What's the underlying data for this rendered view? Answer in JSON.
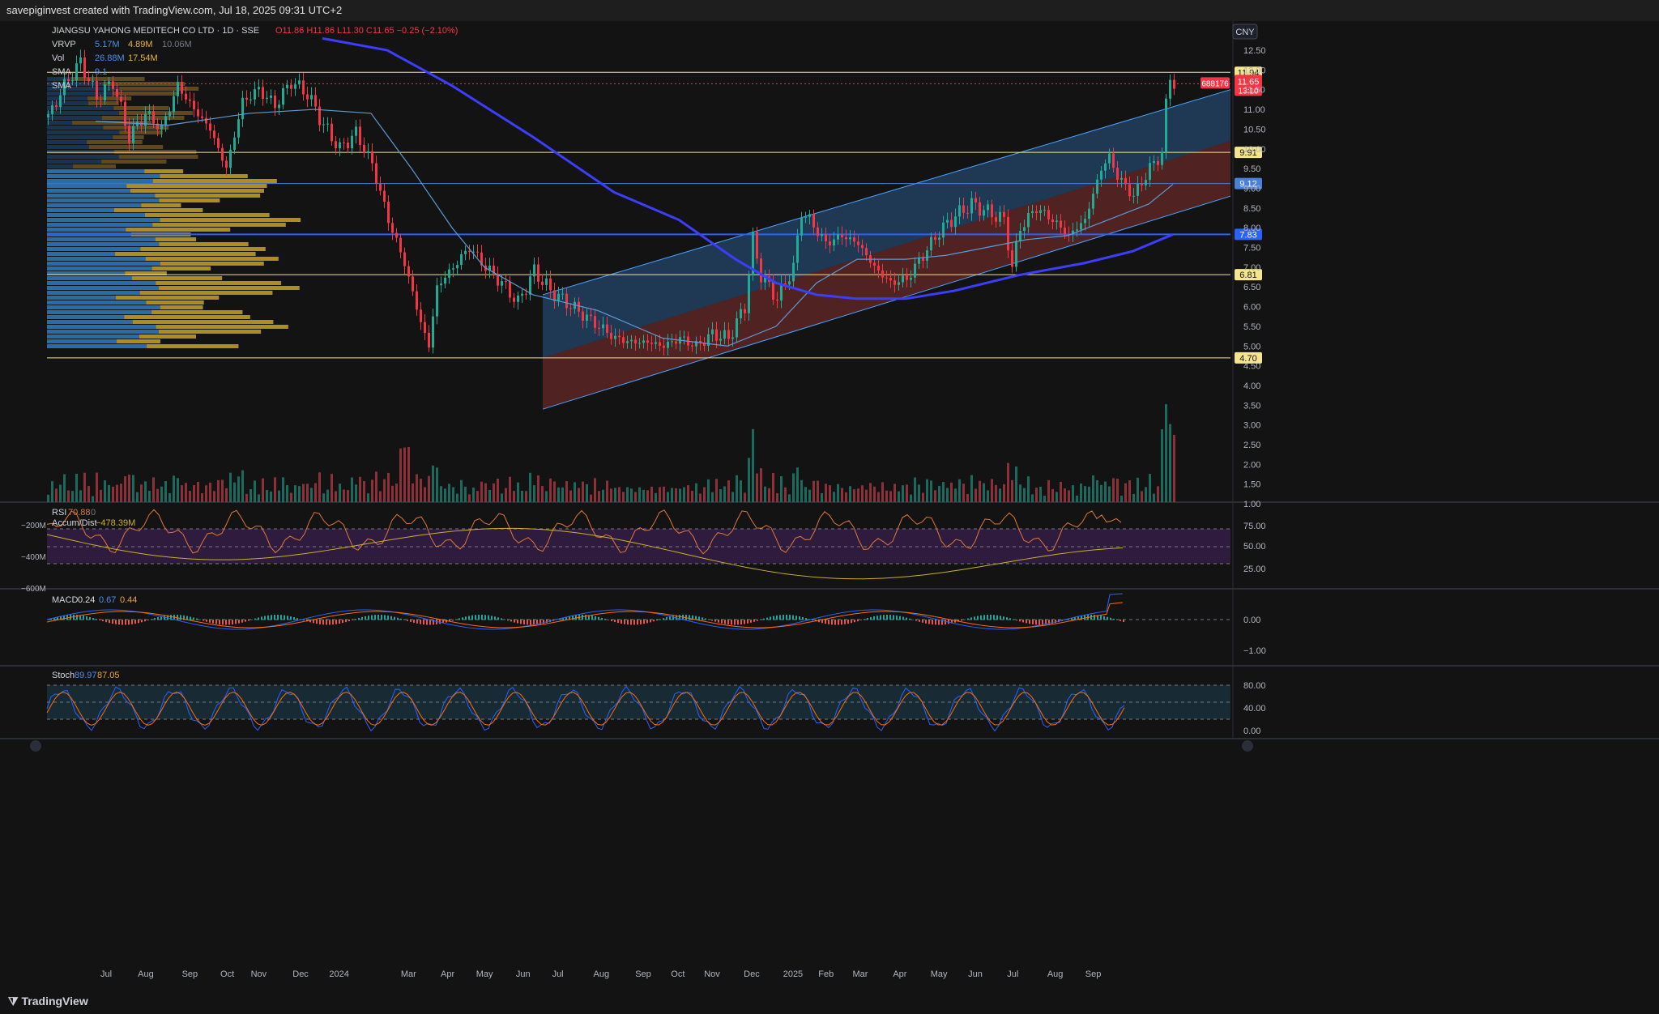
{
  "header": {
    "created_by": "savepiginvest created with TradingView.com, Jul 18, 2025 09:31 UTC+2"
  },
  "footer": {
    "brand": "TradingView"
  },
  "chart_data": {
    "type": "candlestick",
    "symbol": "688176",
    "title": "JIANGSU YAHONG MEDITECH CO LTD · 1D · SSE",
    "ohlc": {
      "O": "11.86",
      "H": "11.86",
      "L": "11.30",
      "C": "11.65",
      "change": "−0.25 (−2.10%)"
    },
    "currency": "CNY",
    "price_range": [
      4.2,
      12.9
    ],
    "price_ticks": [
      "12.50",
      "12.00",
      "11.50",
      "11.00",
      "10.50",
      "10.00",
      "9.50",
      "9.00",
      "8.50",
      "8.00",
      "7.50",
      "7.00",
      "6.50",
      "6.00",
      "5.50",
      "5.00",
      "4.50",
      "4.00",
      "3.50",
      "3.00",
      "2.50",
      "2.00",
      "1.50",
      "1.00"
    ],
    "indicators_legend": [
      {
        "name": "VRVP",
        "v1": "5.17M",
        "v2": "4.89M",
        "v3": "10.06M"
      },
      {
        "name": "Vol",
        "v1": "26.88M",
        "v2": "17.54M"
      },
      {
        "name": "SMA",
        "v1": "9.1"
      },
      {
        "name": "SMA",
        "v1": ""
      }
    ],
    "horizontal_levels": [
      {
        "value": 11.94,
        "label": "11.94",
        "color": "#f5e58f"
      },
      {
        "value": 9.91,
        "label": "9.91",
        "color": "#f5e58f"
      },
      {
        "value": 9.12,
        "label": "9.12",
        "color": "#4c7fd8"
      },
      {
        "value": 7.83,
        "label": "7.83",
        "color": "#2962ff"
      },
      {
        "value": 6.81,
        "label": "6.81",
        "color": "#f5e58f"
      },
      {
        "value": 4.7,
        "label": "4.70",
        "color": "#f5e58f"
      }
    ],
    "last_price": {
      "value": 11.65,
      "label": "11.65",
      "countdown": "13:10"
    },
    "x_labels": [
      "Jul",
      "Aug",
      "Sep",
      "Oct",
      "Nov",
      "Dec",
      "2024",
      "Mar",
      "Apr",
      "May",
      "Jun",
      "Jul",
      "Aug",
      "Sep",
      "Oct",
      "Nov",
      "Dec",
      "2025",
      "Feb",
      "Mar",
      "Apr",
      "May",
      "Jun",
      "Jul",
      "Aug",
      "Sep"
    ],
    "price_path": [
      [
        0,
        10.8
      ],
      [
        20,
        11.6
      ],
      [
        40,
        12.2
      ],
      [
        60,
        11.3
      ],
      [
        80,
        11.7
      ],
      [
        100,
        10.3
      ],
      [
        120,
        10.9
      ],
      [
        140,
        10.5
      ],
      [
        160,
        11.6
      ],
      [
        180,
        11.0
      ],
      [
        200,
        10.5
      ],
      [
        220,
        9.5
      ],
      [
        240,
        11.2
      ],
      [
        260,
        11.5
      ],
      [
        280,
        11.1
      ],
      [
        300,
        11.7
      ],
      [
        320,
        11.4
      ],
      [
        340,
        10.6
      ],
      [
        360,
        10.0
      ],
      [
        380,
        10.4
      ],
      [
        400,
        9.6
      ],
      [
        420,
        8.2
      ],
      [
        440,
        7.1
      ],
      [
        460,
        5.6
      ],
      [
        470,
        5.0
      ],
      [
        480,
        6.5
      ],
      [
        500,
        7.0
      ],
      [
        520,
        7.5
      ],
      [
        540,
        7.0
      ],
      [
        560,
        6.6
      ],
      [
        580,
        6.1
      ],
      [
        600,
        6.9
      ],
      [
        620,
        6.4
      ],
      [
        640,
        6.1
      ],
      [
        660,
        5.8
      ],
      [
        680,
        5.5
      ],
      [
        700,
        5.2
      ],
      [
        720,
        5.1
      ],
      [
        740,
        5.1
      ],
      [
        760,
        5.0
      ],
      [
        780,
        5.2
      ],
      [
        800,
        5.0
      ],
      [
        820,
        5.3
      ],
      [
        840,
        5.2
      ],
      [
        860,
        6.0
      ],
      [
        870,
        7.7
      ],
      [
        880,
        6.8
      ],
      [
        900,
        6.2
      ],
      [
        920,
        7.0
      ],
      [
        930,
        8.4
      ],
      [
        940,
        8.2
      ],
      [
        960,
        7.6
      ],
      [
        980,
        7.8
      ],
      [
        1000,
        7.6
      ],
      [
        1020,
        7.0
      ],
      [
        1040,
        6.6
      ],
      [
        1060,
        6.7
      ],
      [
        1080,
        7.3
      ],
      [
        1100,
        7.9
      ],
      [
        1120,
        8.3
      ],
      [
        1140,
        8.6
      ],
      [
        1160,
        8.4
      ],
      [
        1180,
        8.2
      ],
      [
        1190,
        7.0
      ],
      [
        1200,
        8.0
      ],
      [
        1220,
        8.5
      ],
      [
        1240,
        8.2
      ],
      [
        1260,
        7.8
      ],
      [
        1280,
        8.2
      ],
      [
        1300,
        9.5
      ],
      [
        1310,
        9.8
      ],
      [
        1320,
        9.3
      ],
      [
        1340,
        8.8
      ],
      [
        1360,
        9.5
      ],
      [
        1375,
        9.9
      ],
      [
        1380,
        11.1
      ],
      [
        1384,
        11.9
      ],
      [
        1390,
        11.65
      ]
    ],
    "sma_fast_path": [
      [
        60,
        10.7
      ],
      [
        150,
        10.6
      ],
      [
        250,
        10.9
      ],
      [
        330,
        11.0
      ],
      [
        400,
        10.9
      ],
      [
        450,
        9.5
      ],
      [
        500,
        8.0
      ],
      [
        540,
        7.0
      ],
      [
        600,
        6.3
      ],
      [
        680,
        5.9
      ],
      [
        760,
        5.2
      ],
      [
        840,
        5.0
      ],
      [
        900,
        5.5
      ],
      [
        950,
        6.6
      ],
      [
        1000,
        7.2
      ],
      [
        1060,
        7.2
      ],
      [
        1110,
        7.3
      ],
      [
        1160,
        7.5
      ],
      [
        1210,
        7.7
      ],
      [
        1260,
        7.8
      ],
      [
        1310,
        8.2
      ],
      [
        1360,
        8.6
      ],
      [
        1390,
        9.1
      ]
    ],
    "sma_slow_path": [
      [
        340,
        12.8
      ],
      [
        420,
        12.5
      ],
      [
        500,
        11.6
      ],
      [
        600,
        10.3
      ],
      [
        700,
        8.9
      ],
      [
        780,
        8.2
      ],
      [
        850,
        7.2
      ],
      [
        900,
        6.6
      ],
      [
        950,
        6.3
      ],
      [
        1000,
        6.2
      ],
      [
        1060,
        6.2
      ],
      [
        1120,
        6.4
      ],
      [
        1200,
        6.8
      ],
      [
        1280,
        7.1
      ],
      [
        1340,
        7.4
      ],
      [
        1390,
        7.83
      ]
    ],
    "channel_upper": {
      "x0": 670,
      "y0_top": 6.3,
      "y0_mid": 4.7,
      "y0_bot": 3.4,
      "x1": 1519,
      "y1_top": 11.5,
      "y1_mid": 10.2,
      "y1_bot": 8.8
    },
    "volume_scale_labels": [
      "−200M",
      "−400M",
      "−600M"
    ],
    "rsi": {
      "label": "RSI",
      "value": "70.88",
      "extra": "0",
      "levels": [
        "75.00",
        "50.00",
        "25.00"
      ]
    },
    "accum_dist": {
      "label": "Accum/Dist",
      "value": "−478.39M"
    },
    "macd": {
      "label": "MACD",
      "v1": "0.24",
      "v2": "0.67",
      "v3": "0.44",
      "levels": [
        "0.00",
        "−1.00"
      ]
    },
    "stoch": {
      "label": "Stoch",
      "k": "89.97",
      "d": "87.05",
      "levels": [
        "80.00",
        "40.00",
        "0.00"
      ]
    }
  }
}
